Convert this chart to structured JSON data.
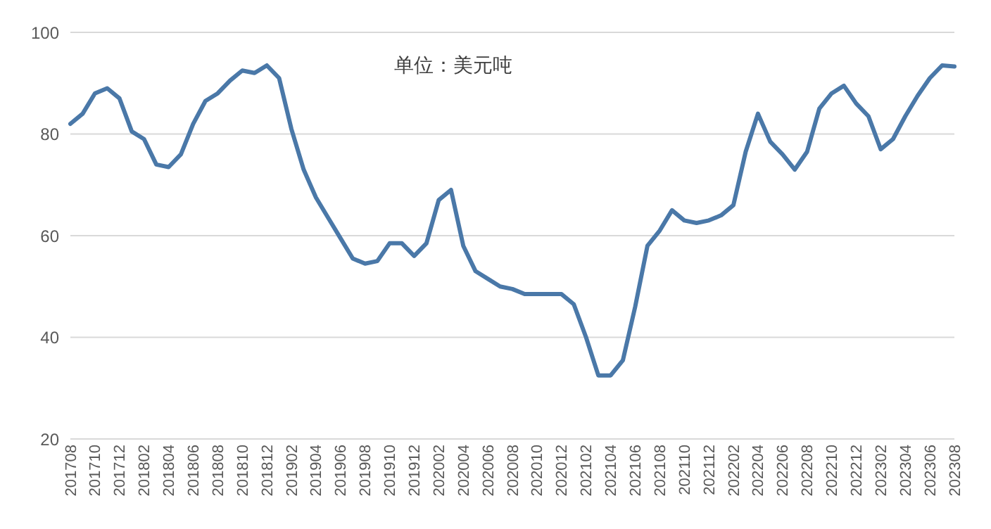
{
  "chart_data": {
    "type": "line",
    "annotations": [
      "单位：美元吨"
    ],
    "categories": [
      "201708",
      null,
      "201710",
      null,
      "201712",
      null,
      "201802",
      null,
      "201804",
      null,
      "201806",
      null,
      "201808",
      null,
      "201810",
      null,
      "201812",
      null,
      "201902",
      null,
      "201904",
      null,
      "201906",
      null,
      "201908",
      null,
      "201910",
      null,
      "201912",
      null,
      "202002",
      null,
      "202004",
      null,
      "202006",
      null,
      "202008",
      null,
      "202010",
      null,
      "202012",
      null,
      "202102",
      null,
      "202104",
      null,
      "202106",
      null,
      "202108",
      null,
      "202110",
      null,
      "202112",
      null,
      "202202",
      null,
      "202204",
      null,
      "202206",
      null,
      "202208",
      null,
      "202210",
      null,
      "202212",
      null,
      "202302",
      null,
      "202304",
      null,
      "202306",
      null,
      "202308"
    ],
    "series": [
      {
        "color": "#4a78a8",
        "values": [
          82,
          84,
          88,
          89,
          87,
          80.5,
          79,
          74,
          73.5,
          76,
          82,
          86.5,
          88,
          90.5,
          92.5,
          92,
          93.5,
          91,
          81,
          73,
          67.5,
          63.5,
          59.5,
          55.5,
          54.5,
          55,
          58.5,
          58.5,
          56,
          58.5,
          67,
          69,
          58,
          53,
          51.5,
          50,
          49.5,
          48.5,
          48.5,
          48.5,
          48.5,
          46.5,
          40,
          32.5,
          32.5,
          35.5,
          46,
          58,
          61,
          65,
          63,
          62.5,
          63,
          64,
          66,
          76.5,
          84,
          78.5,
          76,
          73,
          76.5,
          85,
          88,
          89.5,
          86,
          83.5,
          77,
          79,
          83.5,
          87.5,
          91,
          93.5,
          93.3
        ]
      }
    ],
    "ylim": [
      20,
      100
    ],
    "yticks": [
      20,
      40,
      60,
      80,
      100
    ],
    "grid": "y",
    "legend": false,
    "marker": "none",
    "line_style": "solid"
  }
}
